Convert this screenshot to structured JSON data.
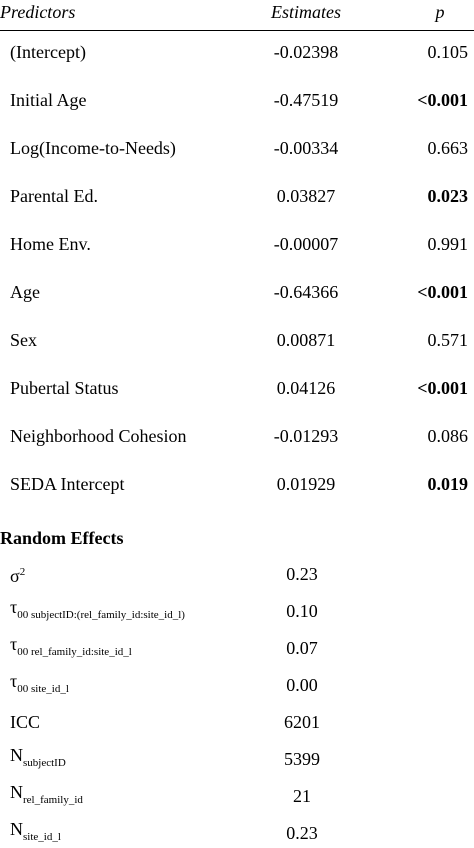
{
  "table": {
    "columns": [
      "Predictors",
      "Estimates",
      "p"
    ],
    "rows": [
      {
        "label": "(Intercept)",
        "estimate": "-0.02398",
        "p": "0.105",
        "bold": false
      },
      {
        "label": "Initial Age",
        "estimate": "-0.47519",
        "p": "<0.001",
        "bold": true
      },
      {
        "label": "Log(Income-to-Needs)",
        "estimate": "-0.00334",
        "p": "0.663",
        "bold": false
      },
      {
        "label": "Parental Ed.",
        "estimate": "0.03827",
        "p": "0.023",
        "bold": true
      },
      {
        "label": "Home Env.",
        "estimate": "-0.00007",
        "p": "0.991",
        "bold": false
      },
      {
        "label": "Age",
        "estimate": "-0.64366",
        "p": "<0.001",
        "bold": true
      },
      {
        "label": "Sex",
        "estimate": "0.00871",
        "p": "0.571",
        "bold": false
      },
      {
        "label": "Pubertal Status",
        "estimate": "0.04126",
        "p": "<0.001",
        "bold": true
      },
      {
        "label": "Neighborhood Cohesion",
        "estimate": "-0.01293",
        "p": "0.086",
        "bold": false
      },
      {
        "label": "SEDA Intercept",
        "estimate": "0.01929",
        "p": "0.019",
        "bold": true
      }
    ],
    "random_title": "Random Effects",
    "random": [
      {
        "symbol": "σ",
        "sup": "2",
        "value": "0.23"
      },
      {
        "symbol": "τ",
        "sub": "00 subjectID:(rel_family_id:site_id_l)",
        "value": "0.10"
      },
      {
        "symbol": "τ",
        "sub": "00 rel_family_id:site_id_l",
        "value": "0.07"
      },
      {
        "symbol": "τ",
        "sub": "00 site_id_l",
        "value": "0.00"
      },
      {
        "symbol": "ICC",
        "value": "6201"
      },
      {
        "symbol": "N",
        "sub": "subjectID",
        "value": "5399"
      },
      {
        "symbol": "N",
        "sub": "rel_family_id",
        "value": "21"
      },
      {
        "symbol": "N",
        "sub": "site_id_l",
        "value": "0.23"
      }
    ]
  }
}
